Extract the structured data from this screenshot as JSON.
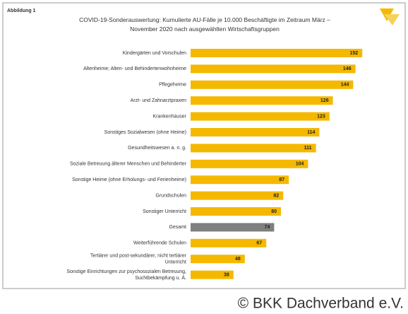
{
  "figure_label": "Abbildung 1",
  "chart_data": {
    "type": "hbar",
    "title": "COVID-19-Sonderauswertung: Kumulierte AU-Fälle je 10.000 Beschäftigte im Zeitraum März – November 2020 nach ausgewählten Wirtschaftsgruppen",
    "categories": [
      "Kindergärten und Vorschulen",
      "Altenheime; Alten- und Behindertenwohnheime",
      "Pflegeheime",
      "Arzt- und Zahnarztpraxen",
      "Krankenhäuser",
      "Sonstiges Sozialwesen (ohne Heime)",
      "Gesundheitswesen a. n. g.",
      "Soziale Betreuung älterer Menschen und Behinderter",
      "Sonstige Heime (ohne Erholungs- und Ferienheime)",
      "Grundschulen",
      "Sonstiger Unterricht",
      "Gesamt",
      "Weiterführende Schulen",
      "Tertiärer und post-sekundärer, nicht tertiärer Unterricht",
      "Sonstige Einrichtungen zur psychosozialen Betreuung, Suchtbekämpfung u. Ä."
    ],
    "values": [
      152,
      146,
      144,
      126,
      123,
      114,
      111,
      104,
      87,
      82,
      80,
      74,
      67,
      48,
      38
    ],
    "colors": [
      "#f5b800",
      "#f5b800",
      "#f5b800",
      "#f5b800",
      "#f5b800",
      "#f5b800",
      "#f5b800",
      "#f5b800",
      "#f5b800",
      "#f5b800",
      "#f5b800",
      "#7f7f7f",
      "#f5b800",
      "#f5b800",
      "#f5b800"
    ]
  },
  "copyright": "© BKK Dachverband e.V."
}
